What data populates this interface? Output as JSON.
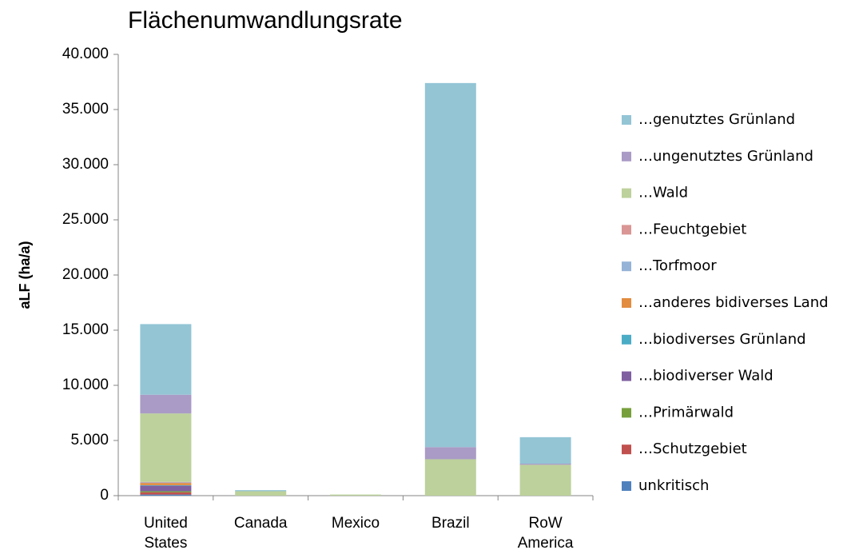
{
  "chart_data": {
    "type": "stacked_bar",
    "title": "Flächenumwandlungsrate",
    "y_label": "aLF (ha/a)",
    "categories": [
      "United States",
      "Canada",
      "Mexico",
      "Brazil",
      "RoW America"
    ],
    "ylim": [
      0,
      40000
    ],
    "yticks": [
      0,
      {
        "value": 5000,
        "label": "5.000"
      },
      {
        "value": 10000,
        "label": "10.000"
      },
      {
        "value": 15000,
        "label": "15.000"
      },
      {
        "value": 20000,
        "label": "20.000"
      },
      {
        "value": 25000,
        "label": "25.000"
      },
      {
        "value": 30000,
        "label": "30.000"
      },
      {
        "value": 35000,
        "label": "35.000"
      },
      {
        "value": 40000,
        "label": "40.000"
      }
    ],
    "grid": false,
    "series": [
      {
        "name": "unkritisch",
        "color": "#4f81bd",
        "values": [
          100,
          0,
          0,
          0,
          0
        ]
      },
      {
        "name": "…Schutzgebiet",
        "color": "#c0504d",
        "values": [
          200,
          0,
          0,
          0,
          0
        ]
      },
      {
        "name": "…Primärwald",
        "color": "#77a03c",
        "values": [
          100,
          0,
          0,
          0,
          0
        ]
      },
      {
        "name": "…biodiverser Wald",
        "color": "#7f5fa0",
        "values": [
          500,
          0,
          0,
          0,
          0
        ]
      },
      {
        "name": "…biodiverses Grünland",
        "color": "#4bacc6",
        "values": [
          50,
          0,
          0,
          0,
          0
        ]
      },
      {
        "name": "…anderes bidiverses Land",
        "color": "#e28c3f",
        "values": [
          200,
          0,
          0,
          0,
          0
        ]
      },
      {
        "name": "…Torfmoor",
        "color": "#95b3d7",
        "values": [
          50,
          0,
          0,
          0,
          0
        ]
      },
      {
        "name": "…Feuchtgebiet",
        "color": "#d99694",
        "values": [
          50,
          0,
          0,
          0,
          0
        ]
      },
      {
        "name": "…Wald",
        "color": "#bcd19b",
        "values": [
          6200,
          400,
          100,
          3300,
          2800
        ]
      },
      {
        "name": "…ungenutztes Grünland",
        "color": "#a99bc5",
        "values": [
          1700,
          0,
          0,
          1100,
          100
        ]
      },
      {
        "name": "…genutztes Grünland",
        "color": "#93c5d5",
        "values": [
          6400,
          100,
          0,
          33000,
          2400
        ]
      }
    ]
  }
}
